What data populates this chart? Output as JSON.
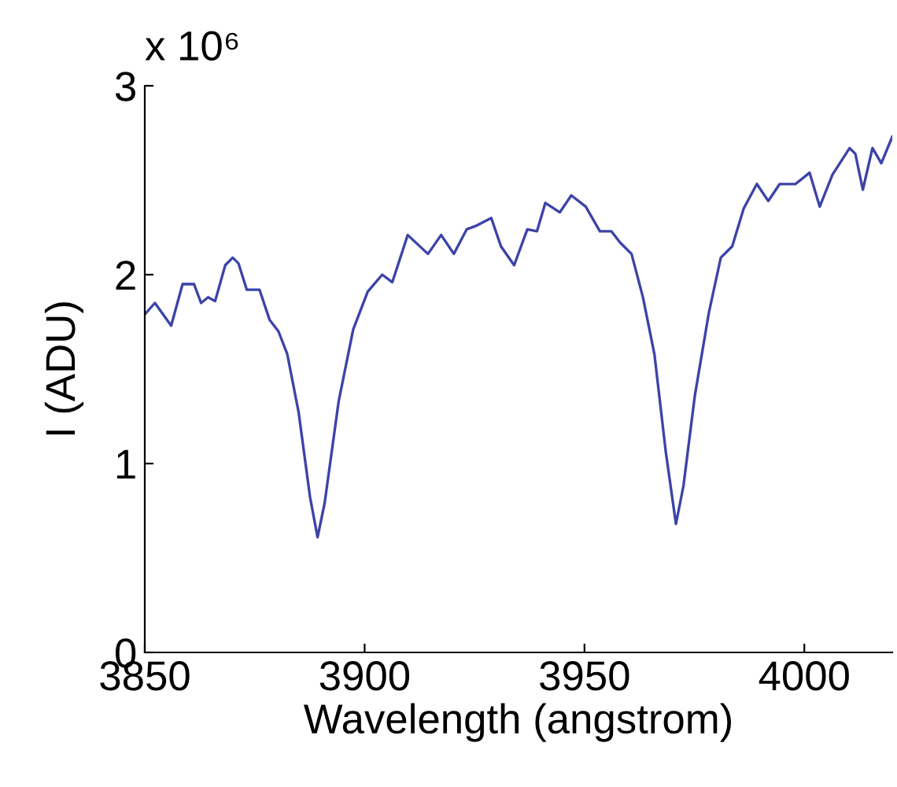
{
  "chart_data": {
    "type": "line",
    "xlabel": "Wavelength (angstrom)",
    "ylabel": "I (ADU)",
    "annotations": [
      "x 10⁶"
    ],
    "xlim": [
      3850,
      4020
    ],
    "xticks": [
      3850,
      3900,
      3950,
      4000
    ],
    "ylim": [
      0,
      3
    ],
    "yticks": [
      0,
      1,
      2,
      3
    ],
    "grid": false,
    "legend": false,
    "series": [
      {
        "color": "#3c43a8",
        "x": [
          3850,
          3852.3,
          3856,
          3858.6,
          3861.2,
          3862.8,
          3864.4,
          3866,
          3868.3,
          3870,
          3871.3,
          3873.2,
          3876.1,
          3878.4,
          3880.4,
          3882.4,
          3885,
          3887.6,
          3889.3,
          3890.9,
          3894.1,
          3897.4,
          3900.7,
          3904,
          3906.3,
          3909.8,
          3914.4,
          3917.4,
          3920.3,
          3923.2,
          3925.5,
          3928.8,
          3931,
          3934,
          3937,
          3939.2,
          3941.1,
          3944.4,
          3947,
          3950.3,
          3953.5,
          3956.1,
          3958.1,
          3960.7,
          3963.3,
          3965.9,
          3968.5,
          3970.8,
          3972.5,
          3975.1,
          3978.3,
          3981,
          3983.6,
          3986.2,
          3989.2,
          3991.8,
          3994.4,
          3998,
          4001.2,
          4003.5,
          4006.4,
          4010.3,
          4011.6,
          4013.3,
          4015.5,
          4017.5,
          4020
        ],
        "values": [
          1.79,
          1.85,
          1.73,
          1.95,
          1.95,
          1.85,
          1.88,
          1.86,
          2.05,
          2.09,
          2.06,
          1.92,
          1.92,
          1.76,
          1.7,
          1.58,
          1.27,
          0.82,
          0.61,
          0.79,
          1.33,
          1.71,
          1.91,
          2.0,
          1.96,
          2.21,
          2.11,
          2.21,
          2.11,
          2.24,
          2.26,
          2.3,
          2.15,
          2.05,
          2.24,
          2.23,
          2.38,
          2.33,
          2.42,
          2.36,
          2.23,
          2.23,
          2.17,
          2.11,
          1.88,
          1.58,
          1.06,
          0.68,
          0.88,
          1.36,
          1.8,
          2.09,
          2.15,
          2.35,
          2.48,
          2.39,
          2.48,
          2.48,
          2.54,
          2.36,
          2.53,
          2.67,
          2.64,
          2.45,
          2.67,
          2.59,
          2.73
        ]
      }
    ]
  }
}
